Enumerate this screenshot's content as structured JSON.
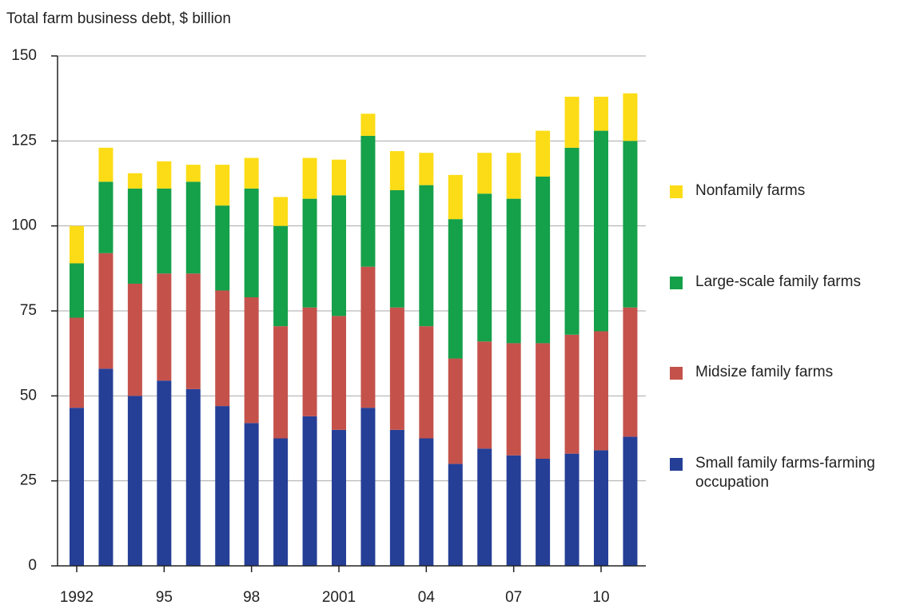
{
  "chart_data": {
    "type": "stacked_bar",
    "y_label": "Total farm business debt, $ billion",
    "categories": [
      "1992",
      null,
      null,
      "95",
      null,
      null,
      "98",
      null,
      null,
      "2001",
      null,
      null,
      "04",
      null,
      null,
      "07",
      null,
      null,
      "10",
      null
    ],
    "series": [
      {
        "name": "Small family farms-farming occupation",
        "color": "#253f97",
        "values": [
          46.5,
          58,
          50,
          54.5,
          52,
          47,
          42,
          37.5,
          44,
          40,
          46.5,
          40,
          37.5,
          30,
          34.5,
          32.5,
          31.5,
          33,
          34,
          38
        ]
      },
      {
        "name": "Midsize family farms",
        "color": "#c4524b",
        "values": [
          26.5,
          34,
          33,
          31.5,
          34,
          34,
          37,
          33,
          32,
          33.5,
          41.5,
          36,
          33,
          31,
          31.5,
          33,
          34,
          35,
          35,
          38
        ]
      },
      {
        "name": "Large-scale family farms",
        "color": "#15a04a",
        "values": [
          16,
          21,
          28,
          25,
          27,
          25,
          32,
          29.5,
          32,
          35.5,
          38.5,
          34.5,
          41.5,
          41,
          43.5,
          42.5,
          49,
          55,
          59,
          49
        ]
      },
      {
        "name": "Nonfamily farms",
        "color": "#fcdc16",
        "values": [
          11,
          10,
          4.5,
          8,
          5,
          12,
          9,
          8.5,
          12,
          10.5,
          6.5,
          11.5,
          9.5,
          13,
          12,
          13.5,
          13.5,
          15,
          10,
          14
        ]
      }
    ],
    "ylim": [
      0,
      150
    ],
    "yticks": [
      0,
      25,
      50,
      75,
      100,
      125,
      150
    ],
    "grid": true,
    "legend": "right"
  }
}
